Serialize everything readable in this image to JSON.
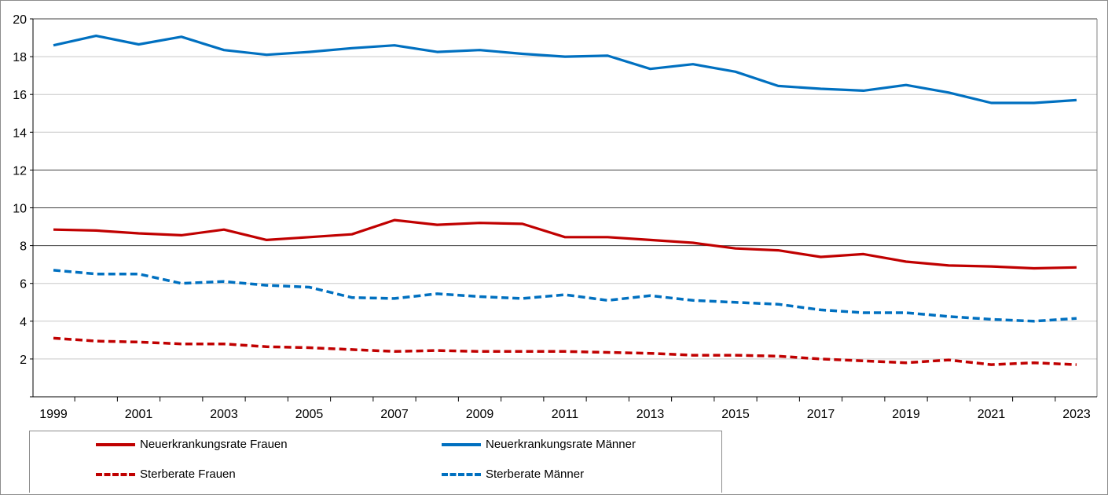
{
  "chart_data": {
    "type": "line",
    "title": "",
    "xlabel": "",
    "ylabel": "",
    "x": [
      1999,
      2000,
      2001,
      2002,
      2003,
      2004,
      2005,
      2006,
      2007,
      2008,
      2009,
      2010,
      2011,
      2012,
      2013,
      2014,
      2015,
      2016,
      2017,
      2018,
      2019,
      2020,
      2021,
      2022,
      2023
    ],
    "xticks": [
      "1999",
      "2001",
      "2003",
      "2005",
      "2007",
      "2009",
      "2011",
      "2013",
      "2015",
      "2017",
      "2019",
      "2021",
      "2023"
    ],
    "xlim": [
      1999,
      2023
    ],
    "ylim": [
      0,
      20
    ],
    "yticks": [
      "2",
      "4",
      "6",
      "8",
      "10",
      "12",
      "14",
      "16",
      "18",
      "20"
    ],
    "grid": "horizontal",
    "legend_position": "bottom",
    "series": [
      {
        "name": "Neuerkrankungsrate Frauen",
        "color": "#c00000",
        "style": "solid",
        "values": [
          8.85,
          8.8,
          8.65,
          8.55,
          8.85,
          8.3,
          8.45,
          8.6,
          9.35,
          9.1,
          9.2,
          9.15,
          8.45,
          8.45,
          8.3,
          8.15,
          7.85,
          7.75,
          7.4,
          7.55,
          7.15,
          6.95,
          6.9,
          6.8,
          6.85
        ]
      },
      {
        "name": "Neuerkrankungsrate Männer",
        "color": "#0070c0",
        "style": "solid",
        "values": [
          18.6,
          19.1,
          18.65,
          19.05,
          18.35,
          18.1,
          18.25,
          18.45,
          18.6,
          18.25,
          18.35,
          18.15,
          18.0,
          18.05,
          17.35,
          17.6,
          17.2,
          16.45,
          16.3,
          16.2,
          16.5,
          16.1,
          15.55,
          15.55,
          15.7
        ]
      },
      {
        "name": "Sterberate Frauen",
        "color": "#c00000",
        "style": "dashed",
        "values": [
          3.1,
          2.95,
          2.9,
          2.8,
          2.8,
          2.65,
          2.6,
          2.5,
          2.4,
          2.45,
          2.4,
          2.4,
          2.4,
          2.35,
          2.3,
          2.2,
          2.2,
          2.15,
          2.0,
          1.9,
          1.8,
          1.95,
          1.7,
          1.8,
          1.7
        ]
      },
      {
        "name": "Sterberate Männer",
        "color": "#0070c0",
        "style": "dashed",
        "values": [
          6.7,
          6.5,
          6.5,
          6.0,
          6.1,
          5.9,
          5.8,
          5.25,
          5.2,
          5.45,
          5.3,
          5.2,
          5.4,
          5.1,
          5.35,
          5.1,
          5.0,
          4.9,
          4.6,
          4.45,
          4.45,
          4.25,
          4.1,
          4.0,
          4.15
        ]
      }
    ]
  }
}
